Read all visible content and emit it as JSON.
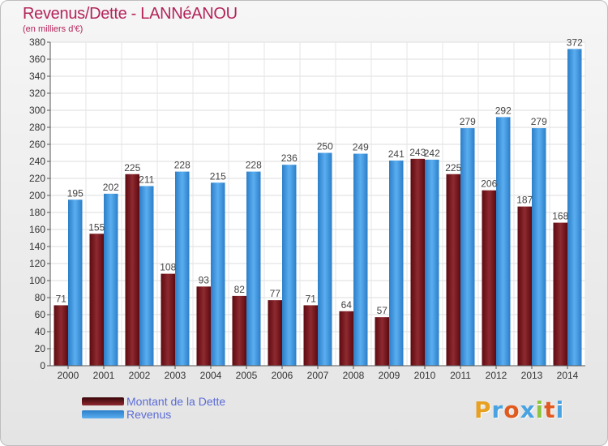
{
  "chart_data": {
    "type": "bar",
    "title": "Revenus/Dette - LANNéANOU",
    "subtitle": "(en milliers d'€)",
    "categories": [
      "2000",
      "2001",
      "2002",
      "2003",
      "2004",
      "2005",
      "2006",
      "2007",
      "2008",
      "2009",
      "2010",
      "2011",
      "2012",
      "2013",
      "2014"
    ],
    "series": [
      {
        "name": "Montant de la Dette",
        "color": "#7a1820",
        "values": [
          71,
          155,
          225,
          108,
          93,
          82,
          77,
          71,
          64,
          57,
          243,
          225,
          206,
          187,
          168
        ]
      },
      {
        "name": "Revenus",
        "color": "#3d98e0",
        "values": [
          195,
          202,
          211,
          228,
          215,
          228,
          236,
          250,
          249,
          241,
          242,
          279,
          292,
          279,
          372
        ]
      }
    ],
    "ylim": [
      0,
      380
    ],
    "ytick_step": 20,
    "grid": true,
    "legend_position": "bottom-left"
  },
  "logo": {
    "letters": [
      "P",
      "r",
      "o",
      "x",
      "i",
      "t",
      "i"
    ],
    "colors": [
      "#e8a020",
      "#4aa3e0",
      "#e05a20",
      "#4aa3e0",
      "#8cc63f",
      "#e05a20",
      "#4aa3e0"
    ]
  }
}
